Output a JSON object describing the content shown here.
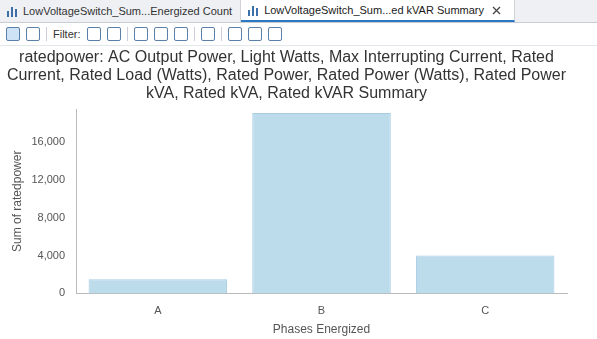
{
  "window": {
    "tabs": [
      {
        "label": "LowVoltageSwitch_Sum...Energized Count",
        "active": false
      },
      {
        "label": "LowVoltageSwitch_Sum...ed kVAR Summary",
        "active": true
      }
    ],
    "toolbar": {
      "filter_label": "Filter:"
    }
  },
  "chart_data": {
    "type": "bar",
    "title": "ratedpower: AC Output Power, Light Watts, Max Interrupting Current, Rated Current, Rated Load (Watts), Rated Power, Rated Power (Watts), Rated Power kVA, Rated kVA, Rated kVAR Summary",
    "x_label": "Phases Energized",
    "y_label": "Sum of ratedpower",
    "categories": [
      "A",
      "B",
      "C"
    ],
    "values": [
      1500,
      19100,
      4000
    ],
    "color": "#bcdcec",
    "ylim": [
      0,
      19500
    ],
    "yticks": [
      0,
      {
        "value": 4000,
        "label": "4,000"
      },
      {
        "value": 8000,
        "label": "8,000"
      },
      {
        "value": 12000,
        "label": "12,000"
      },
      {
        "value": 16000,
        "label": "16,000"
      }
    ],
    "grid": false
  }
}
